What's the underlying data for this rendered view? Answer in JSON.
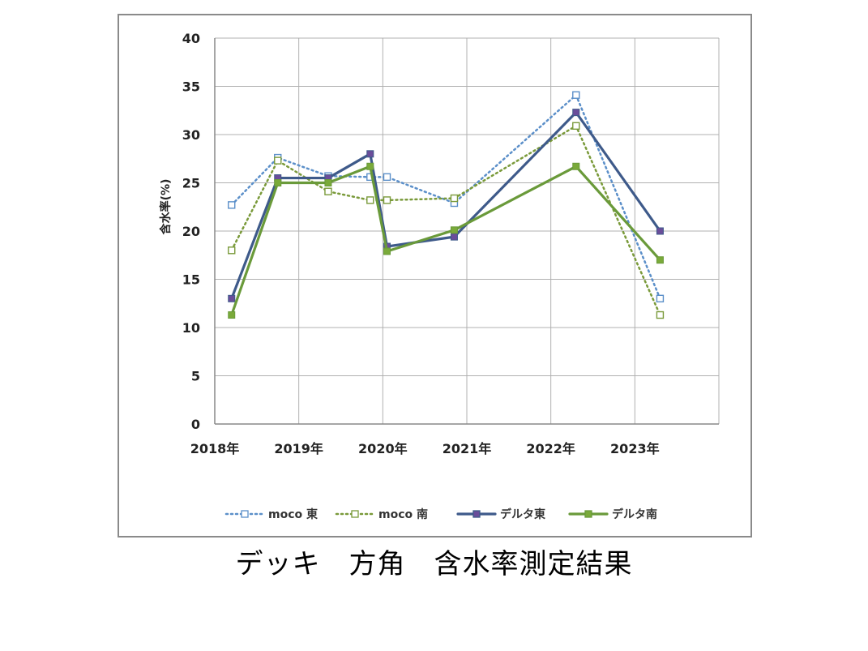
{
  "caption": "デッキ　方角　含水率測定結果",
  "chart_data": {
    "type": "line",
    "ylabel": "含水率(%)",
    "ylim": [
      0,
      40
    ],
    "yticks": [
      "0",
      "5",
      "10",
      "15",
      "20",
      "25",
      "30",
      "35",
      "40"
    ],
    "xlim": [
      2018,
      2024
    ],
    "xticks": [
      {
        "x": 2018,
        "label": "2018年"
      },
      {
        "x": 2019,
        "label": "2019年"
      },
      {
        "x": 2020,
        "label": "2020年"
      },
      {
        "x": 2021,
        "label": "2021年"
      },
      {
        "x": 2022,
        "label": "2022年"
      },
      {
        "x": 2023,
        "label": "2023年"
      }
    ],
    "grid": true,
    "legend_position": "bottom",
    "series": [
      {
        "name": "moco 東",
        "color": "#5b8fc9",
        "style": "dotted",
        "marker": "open-square",
        "x": [
          2018.2,
          2018.75,
          2019.35,
          2019.85,
          2020.05,
          2020.85,
          2022.3,
          2023.3
        ],
        "y": [
          22.7,
          27.6,
          25.7,
          25.6,
          25.6,
          22.9,
          34.1,
          13.0
        ]
      },
      {
        "name": "moco 南",
        "color": "#7a9a3a",
        "style": "dotted",
        "marker": "open-square",
        "x": [
          2018.2,
          2018.75,
          2019.35,
          2019.85,
          2020.05,
          2020.85,
          2022.3,
          2023.3
        ],
        "y": [
          18.0,
          27.3,
          24.1,
          23.2,
          23.2,
          23.4,
          30.9,
          11.3
        ]
      },
      {
        "name": "デルタ東",
        "color": "#3e5a8a",
        "style": "solid",
        "marker": "filled-square",
        "x": [
          2018.2,
          2018.75,
          2019.35,
          2019.85,
          2020.05,
          2020.85,
          2022.3,
          2023.3
        ],
        "y": [
          13.0,
          25.5,
          25.5,
          28.0,
          18.4,
          19.4,
          32.3,
          20.0
        ]
      },
      {
        "name": "デルタ南",
        "color": "#6a9a3a",
        "style": "solid",
        "marker": "filled-square",
        "x": [
          2018.2,
          2018.75,
          2019.35,
          2019.85,
          2020.05,
          2020.85,
          2022.3,
          2023.3
        ],
        "y": [
          11.3,
          25.0,
          25.0,
          26.7,
          17.9,
          20.1,
          26.7,
          17.0
        ]
      }
    ]
  }
}
